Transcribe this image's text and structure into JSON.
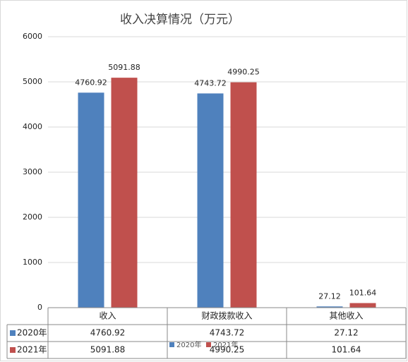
{
  "chart_data": {
    "type": "bar",
    "title": "收入决算情况（万元）",
    "categories": [
      "收入",
      "财政拨款收入",
      "其他收入"
    ],
    "series": [
      {
        "name": "2020年",
        "color": "#4f81bd",
        "values": [
          4760.92,
          4743.72,
          27.12
        ]
      },
      {
        "name": "2021年",
        "color": "#c0504d",
        "values": [
          5091.88,
          4990.25,
          101.64
        ]
      }
    ],
    "ylim": [
      0,
      6000
    ],
    "yticks": [
      0,
      1000,
      2000,
      3000,
      4000,
      5000,
      6000
    ],
    "grid": true,
    "data_table": true,
    "legend": "bottom"
  }
}
